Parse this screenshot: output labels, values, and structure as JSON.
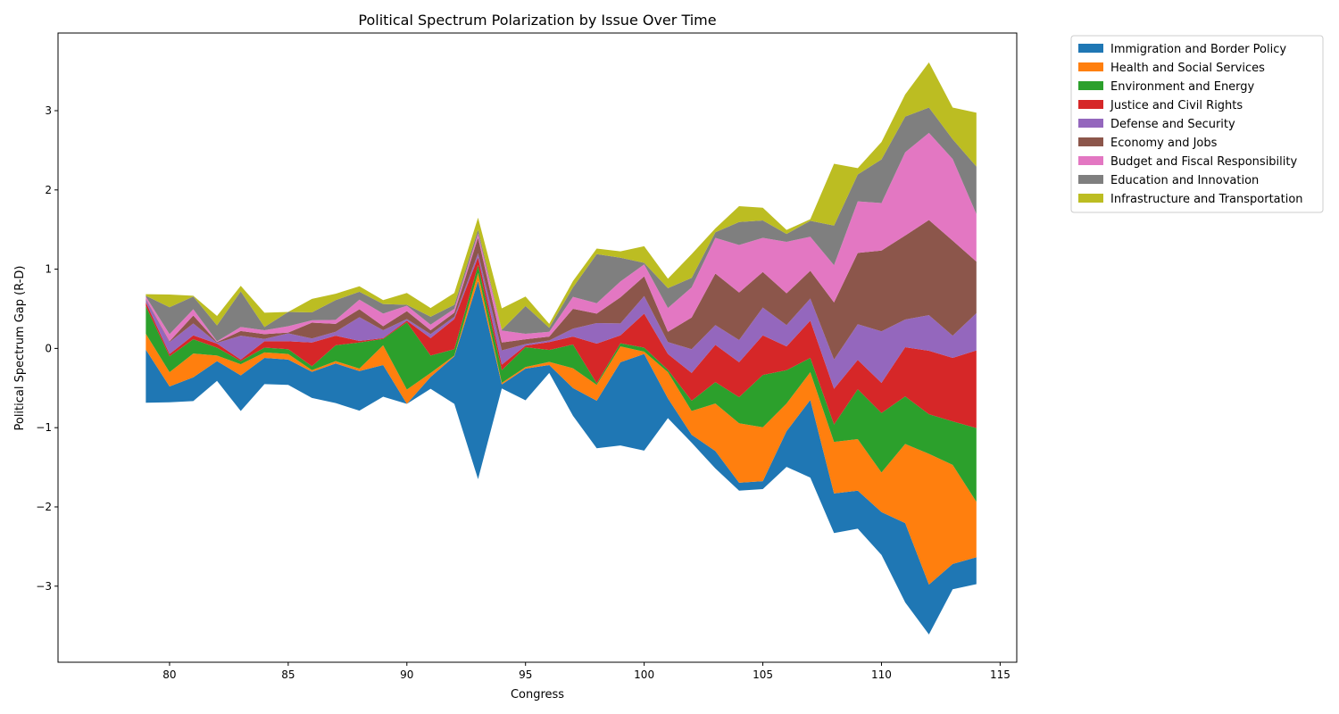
{
  "chart_data": {
    "type": "area",
    "subtype": "streamgraph (symmetric wiggle baseline)",
    "title": "Political Spectrum Polarization by Issue Over Time",
    "xlabel": "Congress",
    "ylabel": "Political Spectrum Gap (R-D)",
    "xlim": [
      75.3,
      115.7
    ],
    "ylim": [
      -3.96,
      3.98
    ],
    "xticks": [
      80,
      85,
      90,
      95,
      100,
      105,
      110,
      115
    ],
    "yticks": [
      -3,
      -2,
      -1,
      0,
      1,
      2,
      3
    ],
    "xtick_labels": [
      "80",
      "85",
      "90",
      "95",
      "100",
      "105",
      "110",
      "115"
    ],
    "ytick_labels": [
      "−3",
      "−2",
      "−1",
      "0",
      "1",
      "2",
      "3"
    ],
    "legend_position": "outside-top-right",
    "x": [
      79,
      80,
      81,
      82,
      83,
      84,
      85,
      86,
      87,
      88,
      89,
      90,
      91,
      92,
      93,
      94,
      95,
      96,
      97,
      98,
      99,
      100,
      101,
      102,
      103,
      104,
      105,
      106,
      107,
      108,
      109,
      110,
      111,
      112,
      113,
      114
    ],
    "series": [
      {
        "name": "Immigration and Border Policy",
        "color": "#1f77b4",
        "values": [
          0.67,
          0.2,
          0.3,
          0.25,
          0.45,
          0.33,
          0.32,
          0.33,
          0.5,
          0.5,
          0.4,
          0.0,
          0.15,
          0.6,
          2.5,
          0.05,
          0.4,
          0.1,
          0.35,
          0.6,
          1.05,
          1.22,
          0.25,
          0.1,
          0.22,
          0.1,
          0.1,
          0.45,
          0.98,
          0.5,
          0.48,
          0.54,
          1.0,
          0.63,
          0.32,
          0.34
        ]
      },
      {
        "name": "Health and Social Services",
        "color": "#ff7f0e",
        "values": [
          0.2,
          0.18,
          0.3,
          0.07,
          0.14,
          0.07,
          0.07,
          0.02,
          0.03,
          0.03,
          0.25,
          0.18,
          0.05,
          0.01,
          0.1,
          0.02,
          0.02,
          0.04,
          0.25,
          0.2,
          0.2,
          0.03,
          0.33,
          0.3,
          0.6,
          0.75,
          0.68,
          0.35,
          0.35,
          0.65,
          0.65,
          0.5,
          1.0,
          1.65,
          1.25,
          0.7
        ]
      },
      {
        "name": "Environment and Energy",
        "color": "#2ca02c",
        "values": [
          0.35,
          0.2,
          0.18,
          0.1,
          0.04,
          0.06,
          0.06,
          0.05,
          0.2,
          0.33,
          0.08,
          0.85,
          0.22,
          0.08,
          0.1,
          0.16,
          0.25,
          0.15,
          0.3,
          0.02,
          0.04,
          0.05,
          0.03,
          0.13,
          0.27,
          0.33,
          0.66,
          0.42,
          0.18,
          0.22,
          0.63,
          0.75,
          0.6,
          0.5,
          0.55,
          0.93
        ]
      },
      {
        "name": "Justice and Civil Rights",
        "color": "#d62728",
        "values": [
          0.05,
          0.03,
          0.05,
          0.05,
          0.02,
          0.08,
          0.1,
          0.3,
          0.12,
          0.02,
          0.01,
          0.02,
          0.22,
          0.38,
          0.1,
          0.07,
          0.02,
          0.1,
          0.1,
          0.5,
          0.1,
          0.43,
          0.2,
          0.35,
          0.47,
          0.44,
          0.5,
          0.3,
          0.47,
          0.45,
          0.37,
          0.38,
          0.62,
          0.8,
          0.8,
          0.98
        ]
      },
      {
        "name": "Defense and Security",
        "color": "#9467bd",
        "values": [
          0.03,
          0.15,
          0.15,
          0.01,
          0.3,
          0.03,
          0.1,
          0.05,
          0.05,
          0.3,
          0.1,
          0.02,
          0.05,
          0.03,
          0.05,
          0.18,
          0.02,
          0.02,
          0.1,
          0.26,
          0.15,
          0.22,
          0.15,
          0.3,
          0.25,
          0.28,
          0.35,
          0.27,
          0.28,
          0.37,
          0.45,
          0.65,
          0.35,
          0.45,
          0.28,
          0.47
        ]
      },
      {
        "name": "Economy and Jobs",
        "color": "#8c564b",
        "values": [
          0.01,
          0.01,
          0.1,
          0.01,
          0.06,
          0.06,
          0.01,
          0.2,
          0.1,
          0.1,
          0.05,
          0.1,
          0.05,
          0.05,
          0.2,
          0.1,
          0.06,
          0.05,
          0.25,
          0.12,
          0.33,
          0.25,
          0.13,
          0.4,
          0.65,
          0.6,
          0.45,
          0.4,
          0.35,
          0.72,
          0.9,
          1.02,
          1.06,
          1.2,
          1.2,
          0.65
        ]
      },
      {
        "name": "Budget and Fiscal Responsibility",
        "color": "#e377c2",
        "values": [
          0.03,
          0.09,
          0.08,
          0.01,
          0.05,
          0.05,
          0.08,
          0.03,
          0.05,
          0.12,
          0.16,
          0.07,
          0.07,
          0.05,
          0.05,
          0.15,
          0.07,
          0.06,
          0.15,
          0.13,
          0.2,
          0.15,
          0.3,
          0.38,
          0.45,
          0.6,
          0.43,
          0.65,
          0.43,
          0.47,
          0.65,
          0.6,
          1.05,
          1.1,
          1.03,
          0.6
        ]
      },
      {
        "name": "Education and Innovation",
        "color": "#7f7f7f",
        "values": [
          0.01,
          0.34,
          0.16,
          0.2,
          0.45,
          0.04,
          0.18,
          0.1,
          0.25,
          0.1,
          0.12,
          0.01,
          0.1,
          0.05,
          0.05,
          0.01,
          0.35,
          0.05,
          0.12,
          0.62,
          0.3,
          0.02,
          0.25,
          0.12,
          0.07,
          0.29,
          0.22,
          0.1,
          0.2,
          0.5,
          0.34,
          0.55,
          0.45,
          0.32,
          0.25,
          0.6
        ]
      },
      {
        "name": "Infrastructure and Transportation",
        "color": "#bcbd22",
        "values": [
          0.02,
          0.16,
          0.01,
          0.12,
          0.07,
          0.18,
          0.0,
          0.17,
          0.08,
          0.07,
          0.05,
          0.15,
          0.11,
          0.15,
          0.15,
          0.27,
          0.12,
          0.05,
          0.08,
          0.07,
          0.08,
          0.21,
          0.12,
          0.3,
          0.05,
          0.2,
          0.16,
          0.05,
          0.02,
          0.78,
          0.08,
          0.22,
          0.28,
          0.57,
          0.4,
          0.68
        ]
      }
    ]
  }
}
